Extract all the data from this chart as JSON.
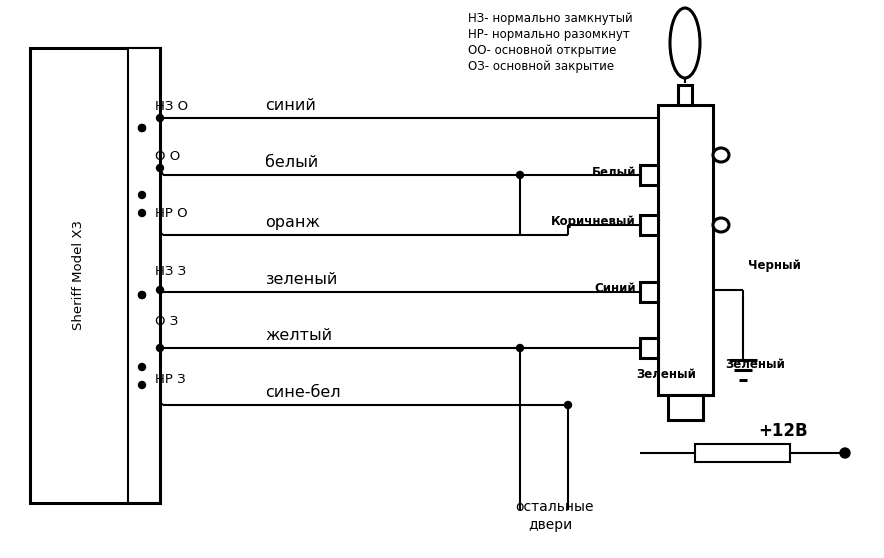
{
  "bg_color": "#ffffff",
  "lw": 1.5,
  "blw": 2.2,
  "legend": [
    "НЗ- нормально замкнутый",
    "НР- нормально разомкнут",
    "ОО- основной открытие",
    "ОЗ- основной закрытие"
  ],
  "sheriff_label": "Sheriff Model X3",
  "wire_names": [
    "синий",
    "белый",
    "оранж",
    "зеленый",
    "желтый",
    "сине-бел"
  ],
  "sw_labels": [
    "НЗ О",
    "О О",
    "НР О",
    "НЗ З",
    "О З",
    "НР З"
  ],
  "conn_labels": [
    "Белый",
    "Коричневый",
    "Синий",
    "Зеленый",
    "Черный"
  ],
  "plus12": "+12В",
  "door_label": [
    "остальные",
    "двери"
  ]
}
